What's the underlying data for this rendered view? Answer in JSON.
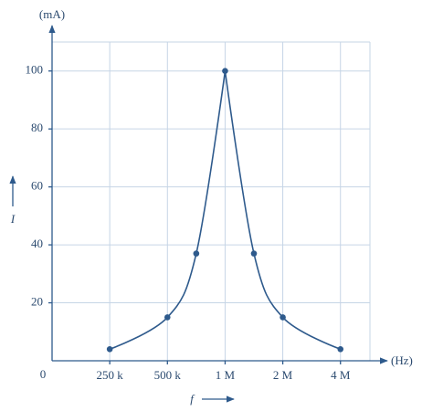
{
  "chart_data": {
    "type": "line",
    "y_unit": "(mA)",
    "x_unit": "(Hz)",
    "origin_label": "0",
    "x_axis_label": "f",
    "y_axis_label": "I",
    "x": [
      250000,
      500000,
      707000,
      1000000,
      1414000,
      2000000,
      4000000
    ],
    "series": [
      {
        "color": "#2e5a8c",
        "values": [
          4,
          15,
          37,
          100,
          37,
          15,
          4
        ]
      }
    ],
    "xscale": "log",
    "xlim": [
      125000,
      5700000
    ],
    "xticks": [
      {
        "value": 250000,
        "label": "250 k"
      },
      {
        "value": 500000,
        "label": "500 k"
      },
      {
        "value": 1000000,
        "label": "1 M"
      },
      {
        "value": 2000000,
        "label": "2 M"
      },
      {
        "value": 4000000,
        "label": "4 M"
      }
    ],
    "ylim": [
      0,
      110
    ],
    "yticks": [
      20,
      40,
      60,
      80,
      100
    ],
    "grid": true
  }
}
